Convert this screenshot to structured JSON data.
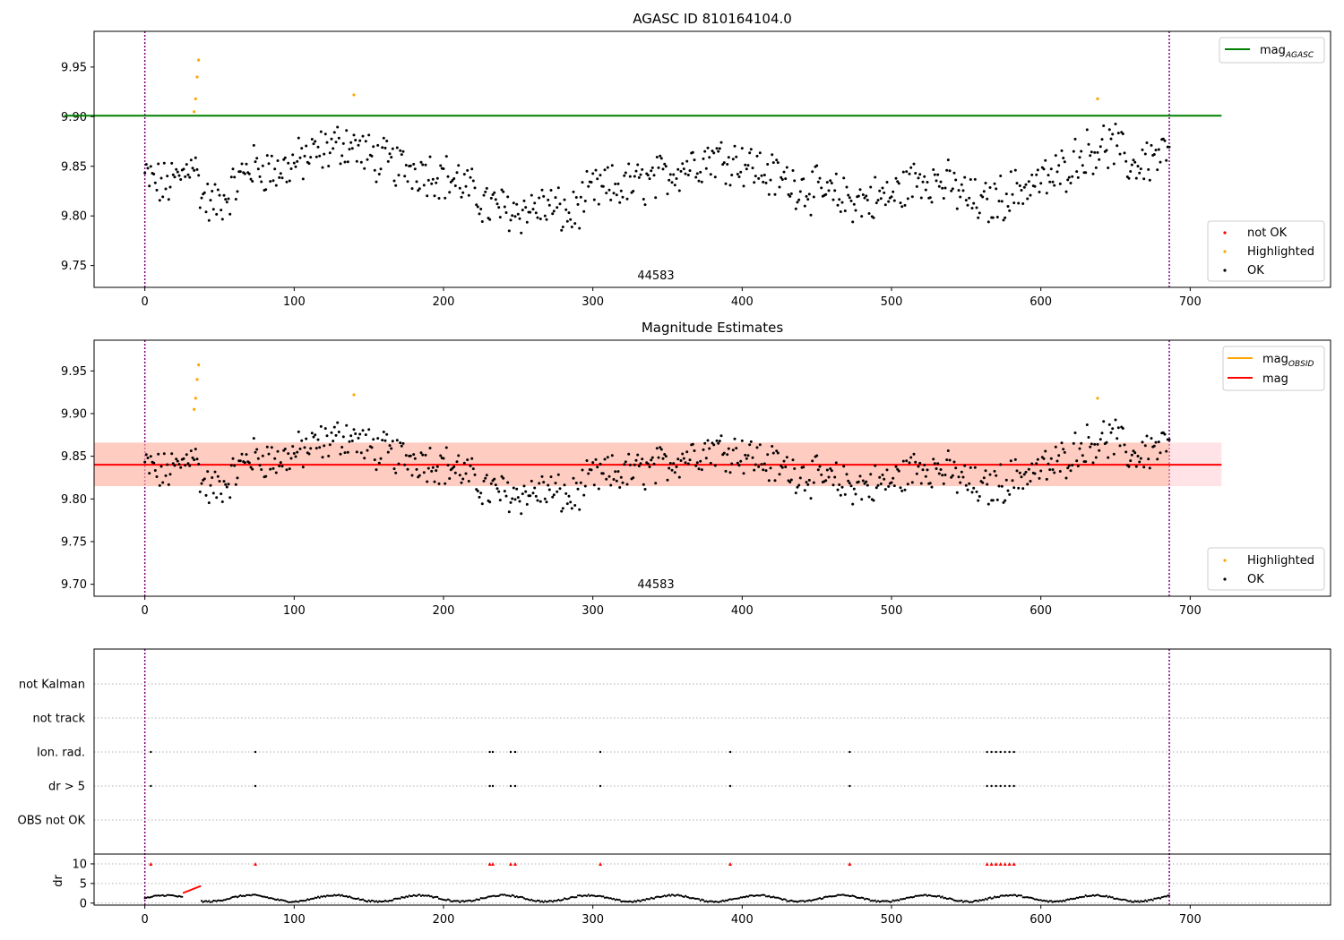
{
  "panels": [
    {
      "id": "top",
      "title": "AGASC ID 810164104.0",
      "xlim": [
        -34,
        794
      ],
      "ylim": [
        9.728,
        9.986
      ],
      "xticks": [
        0,
        100,
        200,
        300,
        400,
        500,
        600,
        700
      ],
      "yticks": [
        "9.75",
        "9.80",
        "9.85",
        "9.90",
        "9.95"
      ],
      "obsid_label": "44583",
      "legend_lines": [
        {
          "label": "mag",
          "sub": "AGASC",
          "color": "#008000"
        }
      ],
      "legend_points": [
        {
          "label": "not OK",
          "color": "#ff0000"
        },
        {
          "label": "Highlighted",
          "color": "#ffa500"
        },
        {
          "label": "OK",
          "color": "#000000"
        }
      ]
    },
    {
      "id": "middle",
      "title": "Magnitude Estimates",
      "xlim": [
        -34,
        794
      ],
      "ylim": [
        9.686,
        9.986
      ],
      "xticks": [
        0,
        100,
        200,
        300,
        400,
        500,
        600,
        700
      ],
      "yticks": [
        "9.70",
        "9.75",
        "9.80",
        "9.85",
        "9.90",
        "9.95"
      ],
      "obsid_label": "44583",
      "legend_lines": [
        {
          "label": "mag",
          "sub": "OBSID",
          "color": "#ffa500"
        },
        {
          "label": "mag",
          "sub": "",
          "color": "#ff0000"
        }
      ],
      "legend_points": [
        {
          "label": "Highlighted",
          "color": "#ffa500"
        },
        {
          "label": "OK",
          "color": "#000000"
        }
      ]
    },
    {
      "id": "flags",
      "flag_labels": [
        "not Kalman",
        "not track",
        "Ion. rad.",
        "dr > 5",
        "OBS not OK"
      ],
      "dr_ylabel": "dr",
      "dr_yticks": [
        "0",
        "5",
        "10"
      ],
      "xticks": [
        0,
        100,
        200,
        300,
        400,
        500,
        600,
        700
      ]
    }
  ],
  "chart_data": [
    {
      "type": "scatter",
      "title": "AGASC ID 810164104.0",
      "x_range": [
        -34,
        794
      ],
      "y_range": [
        9.728,
        9.986
      ],
      "obsid_boundaries": [
        0,
        686
      ],
      "annotations": [
        "44583"
      ],
      "lines": [
        {
          "name": "mag_AGASC",
          "y": 9.901,
          "x": [
            0,
            721
          ]
        }
      ],
      "series": [
        {
          "name": "OK",
          "count_estimate": 686,
          "y_min": 9.765,
          "y_max": 9.906
        },
        {
          "name": "Highlighted",
          "points": [
            [
              33,
              9.905
            ],
            [
              34,
              9.918
            ],
            [
              35,
              9.94
            ],
            [
              36,
              9.957
            ],
            [
              140,
              9.922
            ],
            [
              638,
              9.918
            ]
          ]
        },
        {
          "name": "not OK",
          "points": []
        }
      ]
    },
    {
      "type": "scatter",
      "title": "Magnitude Estimates",
      "x_range": [
        -34,
        794
      ],
      "y_range": [
        9.686,
        9.986
      ],
      "annotations": [
        "44583"
      ],
      "lines": [
        {
          "name": "mag",
          "y": 9.84,
          "band": [
            9.815,
            9.866
          ]
        },
        {
          "name": "mag_OBSID",
          "y": 9.84,
          "band": [
            9.815,
            9.866
          ]
        }
      ],
      "series": [
        {
          "name": "OK",
          "count_estimate": 686
        },
        {
          "name": "Highlighted",
          "points": [
            [
              33,
              9.905
            ],
            [
              34,
              9.918
            ],
            [
              35,
              9.94
            ],
            [
              36,
              9.957
            ],
            [
              140,
              9.922
            ],
            [
              638,
              9.918
            ]
          ]
        }
      ]
    },
    {
      "type": "scatter",
      "categories": [
        "not Kalman",
        "not track",
        "Ion. rad.",
        "dr > 5",
        "OBS not OK"
      ],
      "flag_times": {
        "Ion. rad.": [
          4,
          74,
          231,
          233,
          245,
          248,
          305,
          392,
          472,
          564,
          567,
          570,
          573,
          576,
          579,
          582
        ],
        "dr > 5": [
          4,
          74,
          231,
          233,
          245,
          248,
          305,
          392,
          472,
          564,
          567,
          570,
          573,
          576,
          579,
          582
        ]
      },
      "dr": {
        "ylabel": "dr",
        "y_range": [
          -0.5,
          12.5
        ],
        "clip_value": 10,
        "typical_range": [
          0,
          3
        ]
      }
    }
  ]
}
